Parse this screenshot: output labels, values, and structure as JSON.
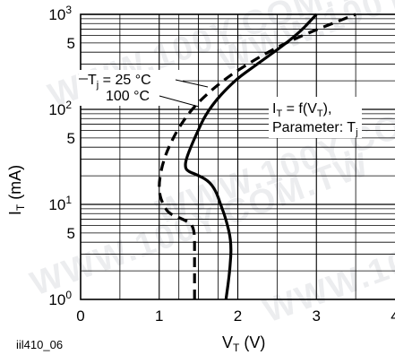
{
  "chart_data": {
    "type": "line",
    "xlabel": "V",
    "xlabel_sub": "T",
    "xlabel_unit": " (V)",
    "ylabel": "I",
    "ylabel_sub": "T",
    "ylabel_unit": " (mA)",
    "xlim": [
      0,
      4
    ],
    "ylim": [
      1,
      1000
    ],
    "yscale": "log",
    "grid": true,
    "x_ticks": [
      "0",
      "1",
      "2",
      "3",
      "4"
    ],
    "y_ticks": [
      {
        "base": "10",
        "exp": "0",
        "value": 1
      },
      {
        "base": "5",
        "exp": "",
        "value": 5
      },
      {
        "base": "10",
        "exp": "1",
        "value": 10
      },
      {
        "base": "5",
        "exp": "",
        "value": 50
      },
      {
        "base": "10",
        "exp": "2",
        "value": 100
      },
      {
        "base": "5",
        "exp": "",
        "value": 500
      },
      {
        "base": "10",
        "exp": "3",
        "value": 1000
      }
    ],
    "series": [
      {
        "name": "Tj = 25 °C",
        "style": "solid",
        "points": [
          [
            1.85,
            1
          ],
          [
            1.9,
            2
          ],
          [
            1.92,
            4
          ],
          [
            1.85,
            7
          ],
          [
            1.78,
            10
          ],
          [
            1.72,
            14
          ],
          [
            1.62,
            18
          ],
          [
            1.45,
            21
          ],
          [
            1.38,
            22
          ],
          [
            1.33,
            24
          ],
          [
            1.34,
            30
          ],
          [
            1.45,
            50
          ],
          [
            1.62,
            100
          ],
          [
            1.95,
            200
          ],
          [
            2.25,
            300
          ],
          [
            2.75,
            600
          ],
          [
            3.0,
            1000
          ]
        ]
      },
      {
        "name": "100 °C",
        "style": "dashed",
        "points": [
          [
            1.45,
            1
          ],
          [
            1.45,
            3
          ],
          [
            1.45,
            6
          ],
          [
            1.3,
            7
          ],
          [
            1.12,
            8
          ],
          [
            1.05,
            10
          ],
          [
            1.0,
            13
          ],
          [
            1.0,
            18
          ],
          [
            1.05,
            28
          ],
          [
            1.12,
            40
          ],
          [
            1.25,
            65
          ],
          [
            1.45,
            110
          ],
          [
            1.8,
            200
          ],
          [
            2.2,
            330
          ],
          [
            2.7,
            550
          ],
          [
            3.5,
            1000
          ]
        ]
      }
    ],
    "annotations": {
      "series_labels": [
        {
          "main": "T",
          "sub": "j",
          "rest": " = 25 °C"
        },
        {
          "main": "100 °C",
          "sub": "",
          "rest": ""
        }
      ],
      "formula": {
        "p1": "I",
        "p1_sub": "T",
        "p2": " = f(V",
        "p2_sub": "T",
        "p3": "),",
        "line2": "Parameter: T",
        "line2_sub": "j"
      }
    },
    "figure_code": "iil410_06"
  },
  "watermark": "WWW.100Y.COM.TW"
}
